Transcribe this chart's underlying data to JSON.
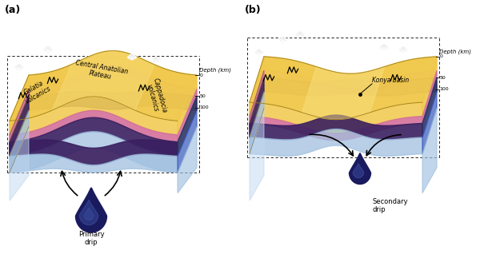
{
  "fig_width": 6.0,
  "fig_height": 3.18,
  "dpi": 100,
  "bg_color": "#ffffff",
  "panel_a_label": "(a)",
  "panel_b_label": "(b)",
  "depth_label": "Depth (km)",
  "depth_ticks": [
    "0",
    "50",
    "100"
  ],
  "label_central_anatolian": "Central Anatolian\nPlateau",
  "label_galatia": "Galatia\nvolcanics",
  "label_cappadocia": "Cappadocia\nvolcanics",
  "label_primary_drip": "Primary\ndrip",
  "label_secondary_drip": "Secondary\ndrip",
  "label_konya_basin": "Konya basin",
  "color_surface_yellow": "#f0c84a",
  "color_surface_highlight": "#f8e080",
  "color_crust_pink": "#d4709a",
  "color_lith_dark": "#3a2060",
  "color_asth_blue": "#4060c0",
  "color_asth_light": "#a0c0e0",
  "color_side_dark": "#283060",
  "color_drip_dark": "#1a1a5e",
  "color_drip_mid": "#3040a0",
  "color_drip_light": "#5070c8"
}
